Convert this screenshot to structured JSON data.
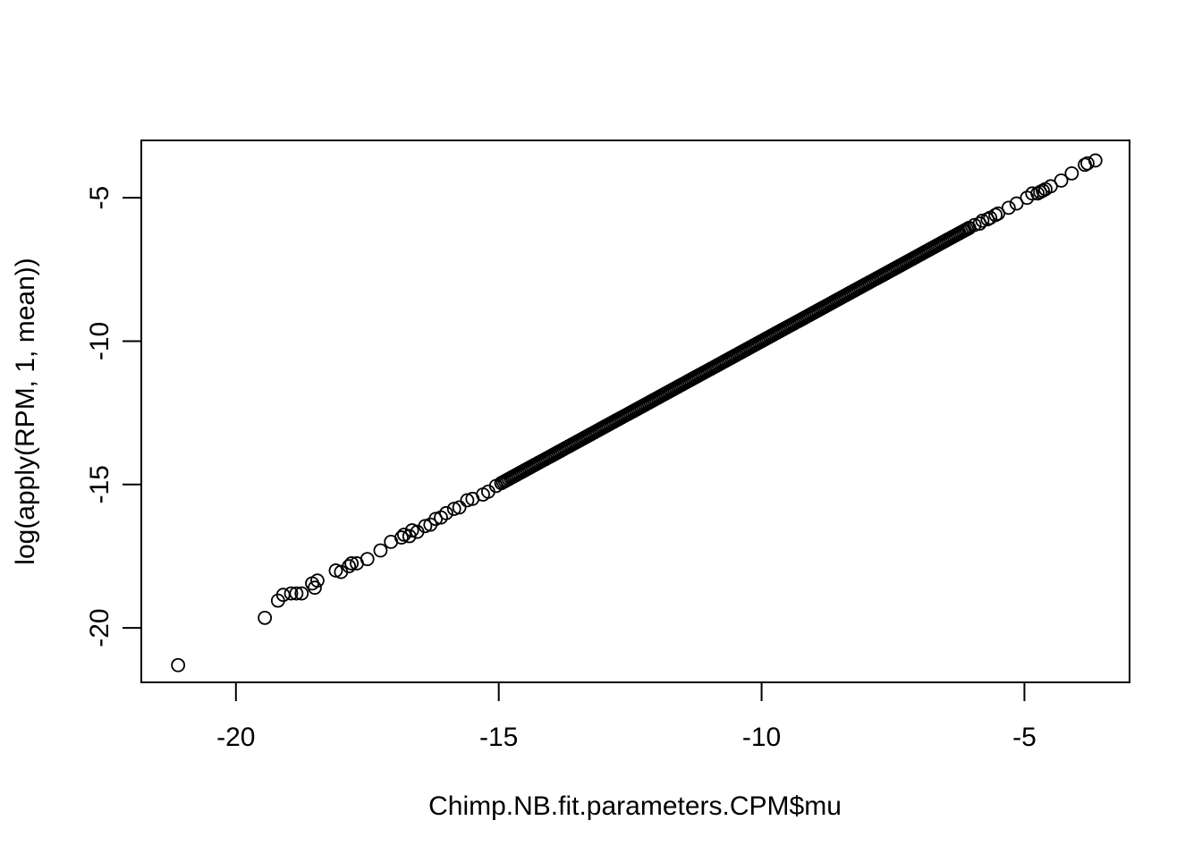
{
  "chart_data": {
    "type": "scatter",
    "title": "",
    "xlabel": "Chimp.NB.fit.parameters.CPM$mu",
    "ylabel": "log(apply(RPM, 1, mean))",
    "xlim": [
      -21.8,
      -3.0
    ],
    "ylim": [
      -21.9,
      -3.0
    ],
    "x_ticks": [
      -20,
      -15,
      -10,
      -5
    ],
    "y_ticks": [
      -20,
      -15,
      -10,
      -5
    ],
    "x_tick_labels": [
      "-20",
      "-15",
      "-10",
      "-5"
    ],
    "y_tick_labels": [
      "-20",
      "-15",
      "-10",
      "-5"
    ],
    "grid": false,
    "legend": "none",
    "marker": "open-circle",
    "colors": {
      "point": "#000000",
      "axis": "#000000",
      "background": "#ffffff"
    },
    "series": [
      {
        "points": [
          [
            -21.1,
            -21.3
          ],
          [
            -19.45,
            -19.65
          ],
          [
            -19.2,
            -19.05
          ],
          [
            -19.1,
            -18.85
          ],
          [
            -18.95,
            -18.8
          ],
          [
            -18.85,
            -18.8
          ],
          [
            -18.75,
            -18.8
          ],
          [
            -18.55,
            -18.45
          ],
          [
            -18.5,
            -18.6
          ],
          [
            -18.45,
            -18.35
          ],
          [
            -18.1,
            -18.0
          ],
          [
            -18.0,
            -18.05
          ],
          [
            -17.85,
            -17.85
          ],
          [
            -17.8,
            -17.75
          ],
          [
            -17.7,
            -17.75
          ],
          [
            -17.5,
            -17.6
          ],
          [
            -17.25,
            -17.3
          ],
          [
            -17.05,
            -17.0
          ],
          [
            -16.85,
            -16.85
          ],
          [
            -16.8,
            -16.75
          ],
          [
            -16.7,
            -16.8
          ],
          [
            -16.65,
            -16.6
          ],
          [
            -16.55,
            -16.65
          ],
          [
            -16.4,
            -16.45
          ],
          [
            -16.3,
            -16.4
          ],
          [
            -16.2,
            -16.2
          ],
          [
            -16.1,
            -16.15
          ],
          [
            -16.0,
            -16.0
          ],
          [
            -15.85,
            -15.85
          ],
          [
            -15.75,
            -15.8
          ],
          [
            -15.6,
            -15.55
          ],
          [
            -15.5,
            -15.5
          ],
          [
            -15.3,
            -15.35
          ],
          [
            -15.2,
            -15.25
          ],
          [
            -15.05,
            -15.05
          ],
          [
            -14.95,
            -14.95
          ],
          [
            -6.05,
            -6.05
          ],
          [
            -5.95,
            -5.95
          ],
          [
            -5.85,
            -5.9
          ],
          [
            -5.8,
            -5.8
          ],
          [
            -5.7,
            -5.75
          ],
          [
            -5.65,
            -5.7
          ],
          [
            -5.55,
            -5.6
          ],
          [
            -5.5,
            -5.55
          ],
          [
            -5.3,
            -5.35
          ],
          [
            -5.15,
            -5.2
          ],
          [
            -4.95,
            -5.0
          ],
          [
            -4.85,
            -4.85
          ],
          [
            -4.75,
            -4.85
          ],
          [
            -4.7,
            -4.8
          ],
          [
            -4.65,
            -4.75
          ],
          [
            -4.6,
            -4.7
          ],
          [
            -4.5,
            -4.6
          ],
          [
            -4.3,
            -4.4
          ],
          [
            -4.1,
            -4.15
          ],
          [
            -3.85,
            -3.85
          ],
          [
            -3.8,
            -3.8
          ],
          [
            -3.65,
            -3.7
          ]
        ],
        "dense_range": [
          -14.95,
          -6.05
        ]
      }
    ]
  }
}
